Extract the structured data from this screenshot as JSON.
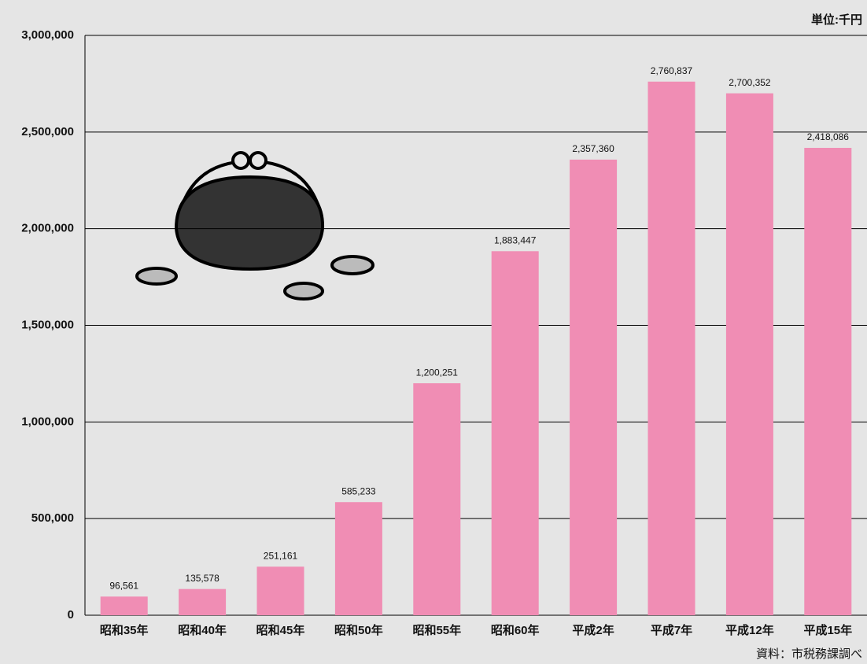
{
  "chart_data": {
    "type": "bar",
    "unit_label": "単位:千円",
    "source": "資料：市税務課調べ",
    "categories": [
      "昭和35年",
      "昭和40年",
      "昭和45年",
      "昭和50年",
      "昭和55年",
      "昭和60年",
      "平成2年",
      "平成7年",
      "平成12年",
      "平成15年"
    ],
    "values": [
      96561,
      135578,
      251161,
      585233,
      1200251,
      1883447,
      2357360,
      2760837,
      2700352,
      2418086
    ],
    "value_labels": [
      "96,561",
      "135,578",
      "251,161",
      "585,233",
      "1,200,251",
      "1,883,447",
      "2,357,360",
      "2,760,837",
      "2,700,352",
      "2,418,086"
    ],
    "color": "#f08db4",
    "ylim": [
      0,
      3000000
    ],
    "yticks": [
      0,
      {
        "value": 500000,
        "label": "500,000"
      },
      {
        "value": 1000000,
        "label": "1,000,000"
      },
      {
        "value": 1500000,
        "label": "1,500,000"
      },
      {
        "value": 2000000,
        "label": "2,000,000"
      },
      {
        "value": 2500000,
        "label": "2,500,000"
      },
      {
        "value": 3000000,
        "label": "3,000,000"
      }
    ],
    "grid": true
  }
}
